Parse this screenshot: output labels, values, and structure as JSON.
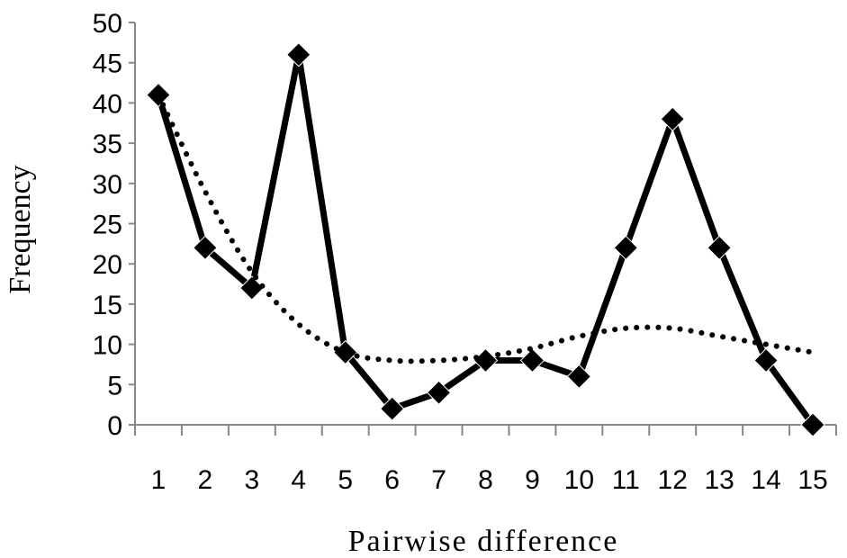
{
  "chart_data": {
    "type": "line",
    "title": "",
    "xlabel": "Pairwise difference",
    "ylabel": "Frequency",
    "categories": [
      "1",
      "2",
      "3",
      "4",
      "5",
      "6",
      "7",
      "8",
      "9",
      "10",
      "11",
      "12",
      "13",
      "14",
      "15"
    ],
    "ylim": [
      0,
      50
    ],
    "yticks": [
      0,
      5,
      10,
      15,
      20,
      25,
      30,
      35,
      40,
      45,
      50
    ],
    "grid": false,
    "legend": "none",
    "series": [
      {
        "style": "solid-diamond",
        "color": "#000000",
        "values": [
          41,
          22,
          17,
          46,
          9,
          2,
          4,
          8,
          8,
          6,
          22,
          38,
          22,
          8,
          0
        ]
      },
      {
        "style": "dotted",
        "color": "#000000",
        "values": [
          41,
          29,
          19,
          12.5,
          9,
          8,
          8,
          8.5,
          9.5,
          11,
          12,
          12,
          11,
          10,
          9
        ]
      }
    ]
  }
}
